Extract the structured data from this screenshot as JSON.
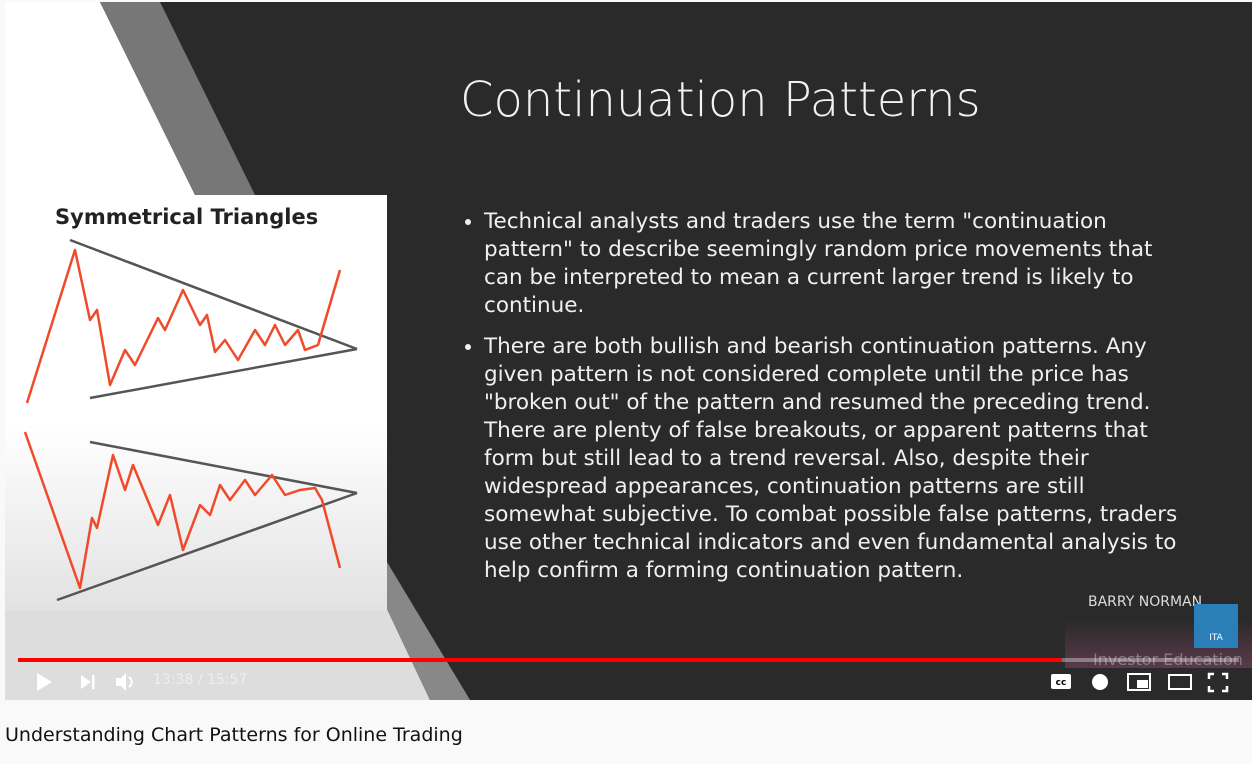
{
  "slide": {
    "title": "Continuation Patterns",
    "bullets": [
      "Technical analysts and traders use the term \"continuation pattern\" to describe seemingly random price movements that can be interpreted to mean a current larger trend is likely to continue.",
      "There are both bullish and bearish continuation patterns. Any given pattern is not considered complete until the price has \"broken out\" of the pattern and resumed the preceding trend. There are plenty of false breakouts, or apparent patterns that form but still lead to a trend reversal. Also, despite their widespread appearances, continuation patterns are still somewhat subjective. To combat possible false patterns, traders use other technical indicators and even fundamental analysis to help confirm a forming continuation pattern."
    ],
    "figure_title": "Symmetrical Triangles"
  },
  "watermark": {
    "name": "BARRY NORMAN",
    "logo": "ITA",
    "subtitle": "Investor Education"
  },
  "player": {
    "time": "13:38 / 15:57"
  },
  "video_title": "Understanding Chart Patterns for Online Trading"
}
